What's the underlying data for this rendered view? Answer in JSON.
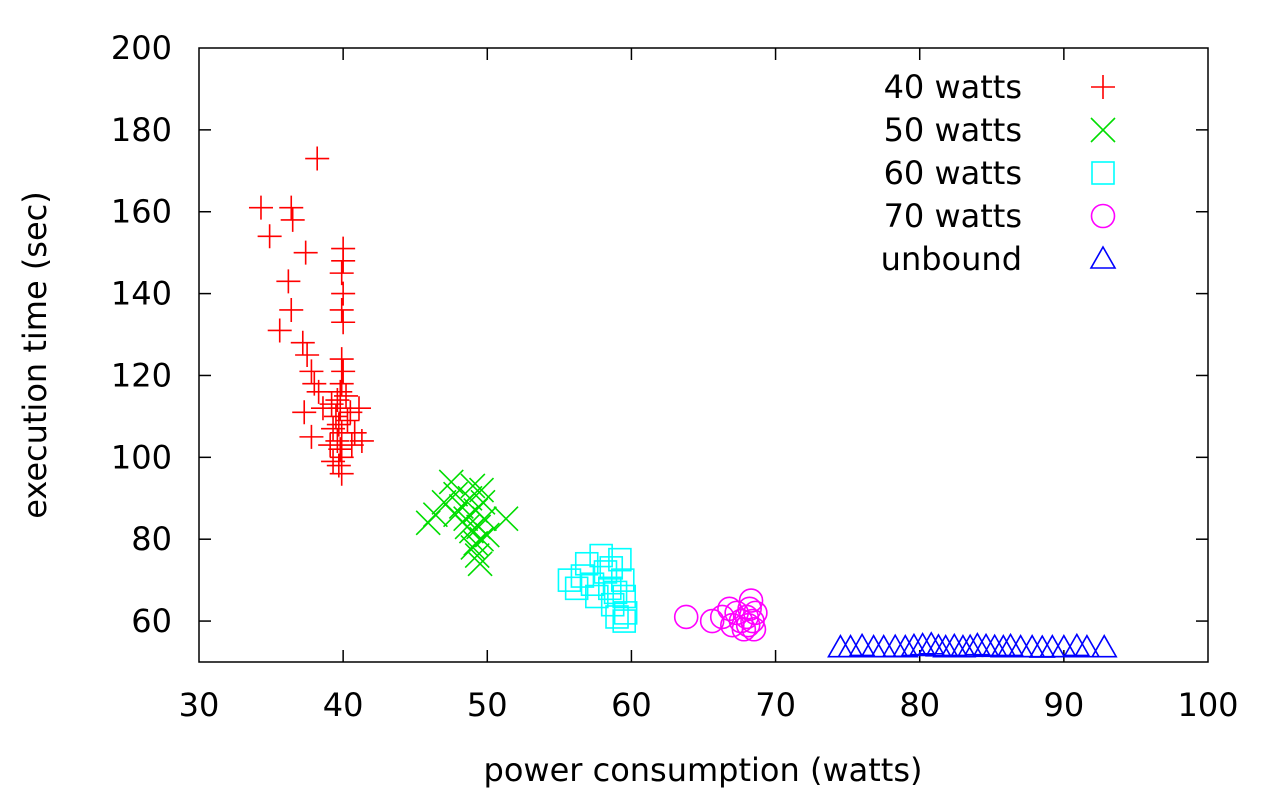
{
  "chart_data": {
    "type": "scatter",
    "title": "",
    "xlabel": "power consumption (watts)",
    "ylabel": "execution time (sec)",
    "xlim": [
      30,
      100
    ],
    "ylim": [
      50,
      200
    ],
    "xticks": [
      30,
      40,
      50,
      60,
      70,
      80,
      90,
      100
    ],
    "yticks": [
      60,
      80,
      100,
      120,
      140,
      160,
      180,
      200
    ],
    "grid": false,
    "legend_position": "top-right",
    "series": [
      {
        "name": "40 watts",
        "color": "#ff0000",
        "marker": "plus",
        "points": [
          [
            38.2,
            173
          ],
          [
            34.3,
            161
          ],
          [
            36.4,
            161
          ],
          [
            36.5,
            158
          ],
          [
            34.9,
            154
          ],
          [
            37.4,
            150
          ],
          [
            36.2,
            143
          ],
          [
            36.4,
            136
          ],
          [
            35.6,
            131
          ],
          [
            37.2,
            128
          ],
          [
            37.5,
            125
          ],
          [
            37.8,
            121
          ],
          [
            38.0,
            118
          ],
          [
            38.3,
            116
          ],
          [
            37.3,
            111
          ],
          [
            37.8,
            105
          ],
          [
            40.0,
            151
          ],
          [
            40.0,
            148
          ],
          [
            39.9,
            145
          ],
          [
            40.0,
            140
          ],
          [
            39.9,
            136
          ],
          [
            40.0,
            133
          ],
          [
            39.9,
            124
          ],
          [
            40.0,
            121
          ],
          [
            39.9,
            118
          ],
          [
            39.8,
            116
          ],
          [
            39.6,
            114
          ],
          [
            39.8,
            112
          ],
          [
            39.5,
            110
          ],
          [
            39.7,
            108
          ],
          [
            39.9,
            106
          ],
          [
            39.6,
            104
          ],
          [
            39.8,
            102
          ],
          [
            39.9,
            100
          ],
          [
            39.7,
            98
          ],
          [
            39.9,
            96
          ],
          [
            39.2,
            113
          ],
          [
            39.3,
            107
          ],
          [
            40.3,
            109
          ],
          [
            40.5,
            111
          ],
          [
            40.8,
            106
          ],
          [
            41.1,
            112
          ],
          [
            41.3,
            104
          ],
          [
            40.6,
            103
          ],
          [
            40.2,
            115
          ],
          [
            38.6,
            112
          ],
          [
            39.1,
            103
          ],
          [
            39.3,
            99
          ]
        ]
      },
      {
        "name": "50 watts",
        "color": "#00dd00",
        "marker": "cross",
        "points": [
          [
            45.9,
            84
          ],
          [
            46.4,
            86
          ],
          [
            47.0,
            89
          ],
          [
            47.5,
            94
          ],
          [
            47.8,
            91
          ],
          [
            48.2,
            88
          ],
          [
            48.5,
            85
          ],
          [
            48.8,
            90
          ],
          [
            49.0,
            93
          ],
          [
            49.2,
            87
          ],
          [
            49.4,
            83
          ],
          [
            49.6,
            80
          ],
          [
            49.0,
            78
          ],
          [
            49.3,
            76
          ],
          [
            49.5,
            74
          ],
          [
            48.9,
            82
          ],
          [
            49.7,
            89
          ],
          [
            49.8,
            85
          ],
          [
            50.0,
            81
          ],
          [
            49.2,
            79
          ],
          [
            48.6,
            83
          ],
          [
            47.8,
            86
          ],
          [
            51.3,
            85
          ],
          [
            49.6,
            92
          ]
        ]
      },
      {
        "name": "60 watts",
        "color": "#00ffff",
        "marker": "square",
        "points": [
          [
            55.7,
            70
          ],
          [
            56.2,
            68
          ],
          [
            56.6,
            71
          ],
          [
            56.9,
            74
          ],
          [
            57.3,
            69
          ],
          [
            57.6,
            66
          ],
          [
            57.9,
            76
          ],
          [
            58.2,
            72
          ],
          [
            58.5,
            68
          ],
          [
            58.7,
            64
          ],
          [
            59.0,
            61
          ],
          [
            59.2,
            75
          ],
          [
            59.4,
            70
          ],
          [
            59.5,
            66
          ],
          [
            59.6,
            62
          ],
          [
            59.5,
            60
          ],
          [
            58.6,
            73
          ],
          [
            58.9,
            67
          ]
        ]
      },
      {
        "name": "70 watts",
        "color": "#ff00ff",
        "marker": "circle",
        "points": [
          [
            63.8,
            61
          ],
          [
            65.6,
            60
          ],
          [
            66.3,
            61
          ],
          [
            66.8,
            63
          ],
          [
            67.0,
            59
          ],
          [
            67.3,
            62
          ],
          [
            67.6,
            60
          ],
          [
            67.8,
            58
          ],
          [
            68.0,
            61
          ],
          [
            68.2,
            63
          ],
          [
            68.4,
            60
          ],
          [
            68.5,
            58
          ],
          [
            68.3,
            65
          ],
          [
            68.6,
            62
          ],
          [
            68.1,
            59
          ]
        ]
      },
      {
        "name": "unbound",
        "color": "#0000ff",
        "marker": "triangle",
        "points": [
          [
            74.5,
            53.5
          ],
          [
            75.2,
            53.5
          ],
          [
            76.0,
            53.8
          ],
          [
            76.8,
            53.5
          ],
          [
            77.5,
            53.5
          ],
          [
            78.3,
            53.6
          ],
          [
            79.0,
            53.5
          ],
          [
            79.6,
            53.8
          ],
          [
            80.2,
            54.0
          ],
          [
            80.8,
            54.2
          ],
          [
            81.3,
            53.7
          ],
          [
            81.8,
            53.5
          ],
          [
            82.4,
            53.8
          ],
          [
            83.0,
            53.5
          ],
          [
            83.5,
            53.6
          ],
          [
            84.0,
            54.0
          ],
          [
            84.6,
            53.8
          ],
          [
            85.2,
            53.6
          ],
          [
            85.8,
            53.5
          ],
          [
            86.3,
            53.8
          ],
          [
            87.0,
            53.5
          ],
          [
            87.8,
            53.5
          ],
          [
            88.5,
            53.4
          ],
          [
            89.2,
            53.5
          ],
          [
            90.0,
            53.5
          ],
          [
            90.9,
            53.8
          ],
          [
            91.6,
            53.5
          ],
          [
            92.8,
            53.5
          ]
        ]
      }
    ]
  }
}
